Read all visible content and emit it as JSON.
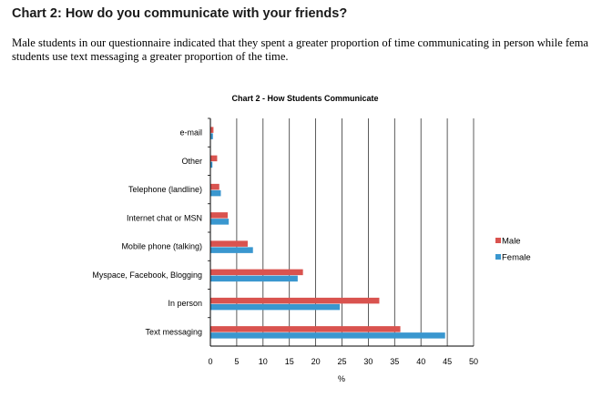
{
  "heading": "Chart 2: How do you communicate with your friends?",
  "paragraph": {
    "line1": "Male students in our questionnaire indicated that they spent a greater proportion of time communicating in person while fema",
    "line2": "students use text messaging a greater proportion of the time."
  },
  "chart_data": {
    "type": "bar",
    "orientation": "horizontal",
    "title": "Chart 2 - How Students Communicate",
    "xlabel": "%",
    "ylabel": "",
    "categories": [
      "e-mail",
      "Other",
      "Telephone (landline)",
      "Internet chat or MSN",
      "Mobile phone (talking)",
      "Myspace, Facebook, Blogging",
      "In person",
      "Text messaging"
    ],
    "series": [
      {
        "name": "Male",
        "color": "#d9534f",
        "values": [
          0.5,
          1.2,
          1.6,
          3.2,
          7.0,
          17.5,
          32.0,
          36.0
        ]
      },
      {
        "name": "Female",
        "color": "#3a97cf",
        "values": [
          0.4,
          0.3,
          1.9,
          3.4,
          8.0,
          16.5,
          24.5,
          44.5
        ]
      }
    ],
    "xlim": [
      0,
      50
    ],
    "xticks": [
      "0",
      "5",
      "10",
      "15",
      "20",
      "25",
      "30",
      "35",
      "40",
      "45",
      "50"
    ],
    "grid": "vertical",
    "legend": "right"
  }
}
